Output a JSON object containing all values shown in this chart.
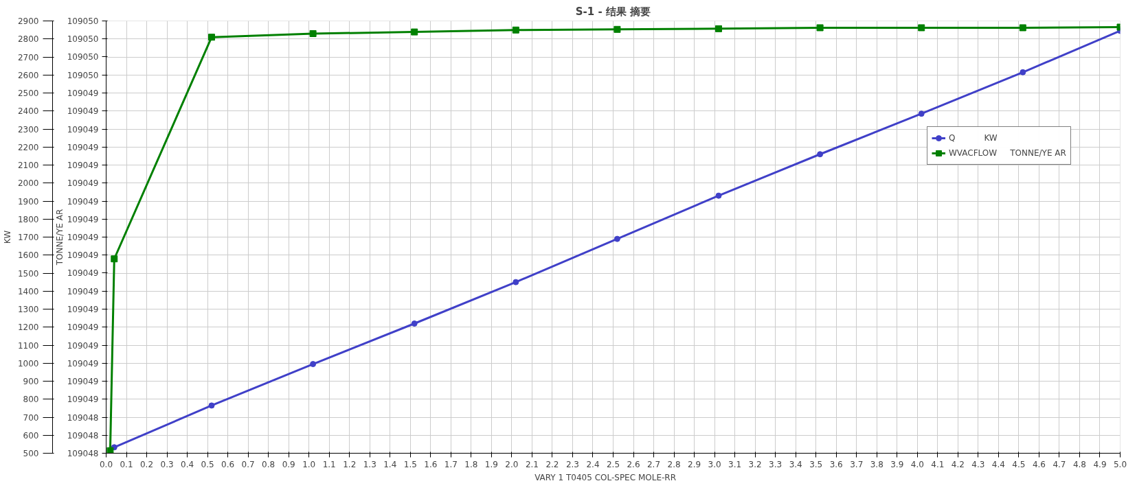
{
  "chart_data": {
    "type": "line",
    "title": "S-1 - 结果 摘要",
    "xlabel": "VARY   1 T0405     COL-SPEC MOLE-RR",
    "ylabel": "TONNE/YE AR",
    "y2label": "KW",
    "xlim": [
      0,
      5
    ],
    "xticks": [
      {
        "value": 0,
        "label": "0.0"
      },
      0.1,
      0.2,
      0.3,
      0.4,
      0.5,
      0.6,
      0.7,
      0.8,
      0.9,
      {
        "value": 1,
        "label": "1.0"
      },
      1.1,
      1.2,
      1.3,
      1.4,
      1.5,
      1.6,
      1.7,
      1.8,
      1.9,
      {
        "value": 2,
        "label": "2.0"
      },
      2.1,
      2.2,
      2.3,
      2.4,
      2.5,
      2.6,
      2.7,
      2.8,
      2.9,
      {
        "value": 3,
        "label": "3.0"
      },
      3.1,
      3.2,
      3.3,
      3.4,
      3.5,
      3.6,
      3.7,
      3.8,
      3.9,
      {
        "value": 4,
        "label": "4.0"
      },
      4.1,
      4.2,
      4.3,
      4.4,
      4.5,
      4.6,
      4.7,
      4.8,
      4.9,
      {
        "value": 5,
        "label": "5.0"
      }
    ],
    "y2lim": [
      500,
      2900
    ],
    "y2ticks": [
      500,
      600,
      700,
      800,
      900,
      1000,
      1100,
      1200,
      1300,
      1400,
      1500,
      1600,
      1700,
      1800,
      1900,
      2000,
      2100,
      2200,
      2300,
      2400,
      2500,
      2600,
      2700,
      2800,
      2900
    ],
    "ylim": [
      109048.36,
      109049.69
    ],
    "yticks": [
      {
        "value": 109048.36,
        "label": "109048"
      },
      {
        "value": 109048.4154,
        "label": "109048"
      },
      {
        "value": 109048.4708,
        "label": "109048"
      },
      {
        "value": 109048.5263,
        "label": "109049"
      },
      {
        "value": 109048.5817,
        "label": "109049"
      },
      {
        "value": 109048.6371,
        "label": "109049"
      },
      {
        "value": 109048.6925,
        "label": "109049"
      },
      {
        "value": 109048.7479,
        "label": "109049"
      },
      {
        "value": 109048.8033,
        "label": "109049"
      },
      {
        "value": 109048.8588,
        "label": "109049"
      },
      {
        "value": 109048.9142,
        "label": "109049"
      },
      {
        "value": 109048.9696,
        "label": "109049"
      },
      {
        "value": 109049.025,
        "label": "109049"
      },
      {
        "value": 109049.0804,
        "label": "109049"
      },
      {
        "value": 109049.1358,
        "label": "109049"
      },
      {
        "value": 109049.1913,
        "label": "109049"
      },
      {
        "value": 109049.2467,
        "label": "109049"
      },
      {
        "value": 109049.3021,
        "label": "109049"
      },
      {
        "value": 109049.3575,
        "label": "109049"
      },
      {
        "value": 109049.4129,
        "label": "109049"
      },
      {
        "value": 109049.4683,
        "label": "109049"
      },
      {
        "value": 109049.5238,
        "label": "109050"
      },
      {
        "value": 109049.5792,
        "label": "109050"
      },
      {
        "value": 109049.6346,
        "label": "109050"
      },
      {
        "value": 109049.69,
        "label": "109050"
      }
    ],
    "grid": true,
    "legend": "right",
    "line_style": "solid",
    "series": [
      {
        "name": "Q           KW",
        "color": "#4040c8",
        "marker": "circle",
        "axis": "y2",
        "x": [
          0.04,
          0.52,
          1.02,
          1.52,
          2.02,
          2.52,
          3.02,
          3.52,
          4.02,
          4.52,
          5.0
        ],
        "values": [
          533,
          765,
          995,
          1220,
          1450,
          1690,
          1930,
          2160,
          2385,
          2615,
          2845
        ]
      },
      {
        "name": "WVACFLOW     TONNE/YE AR",
        "color": "#008000",
        "marker": "square",
        "x": [
          0.02,
          0.04,
          0.52,
          1.02,
          1.52,
          2.02,
          2.52,
          3.02,
          3.52,
          4.02,
          4.52,
          5.0
        ],
        "values": [
          109048.368,
          109048.958,
          109049.64,
          109049.651,
          109049.656,
          109049.662,
          109049.664,
          109049.666,
          109049.669,
          109049.669,
          109049.669,
          109049.671
        ]
      }
    ]
  }
}
